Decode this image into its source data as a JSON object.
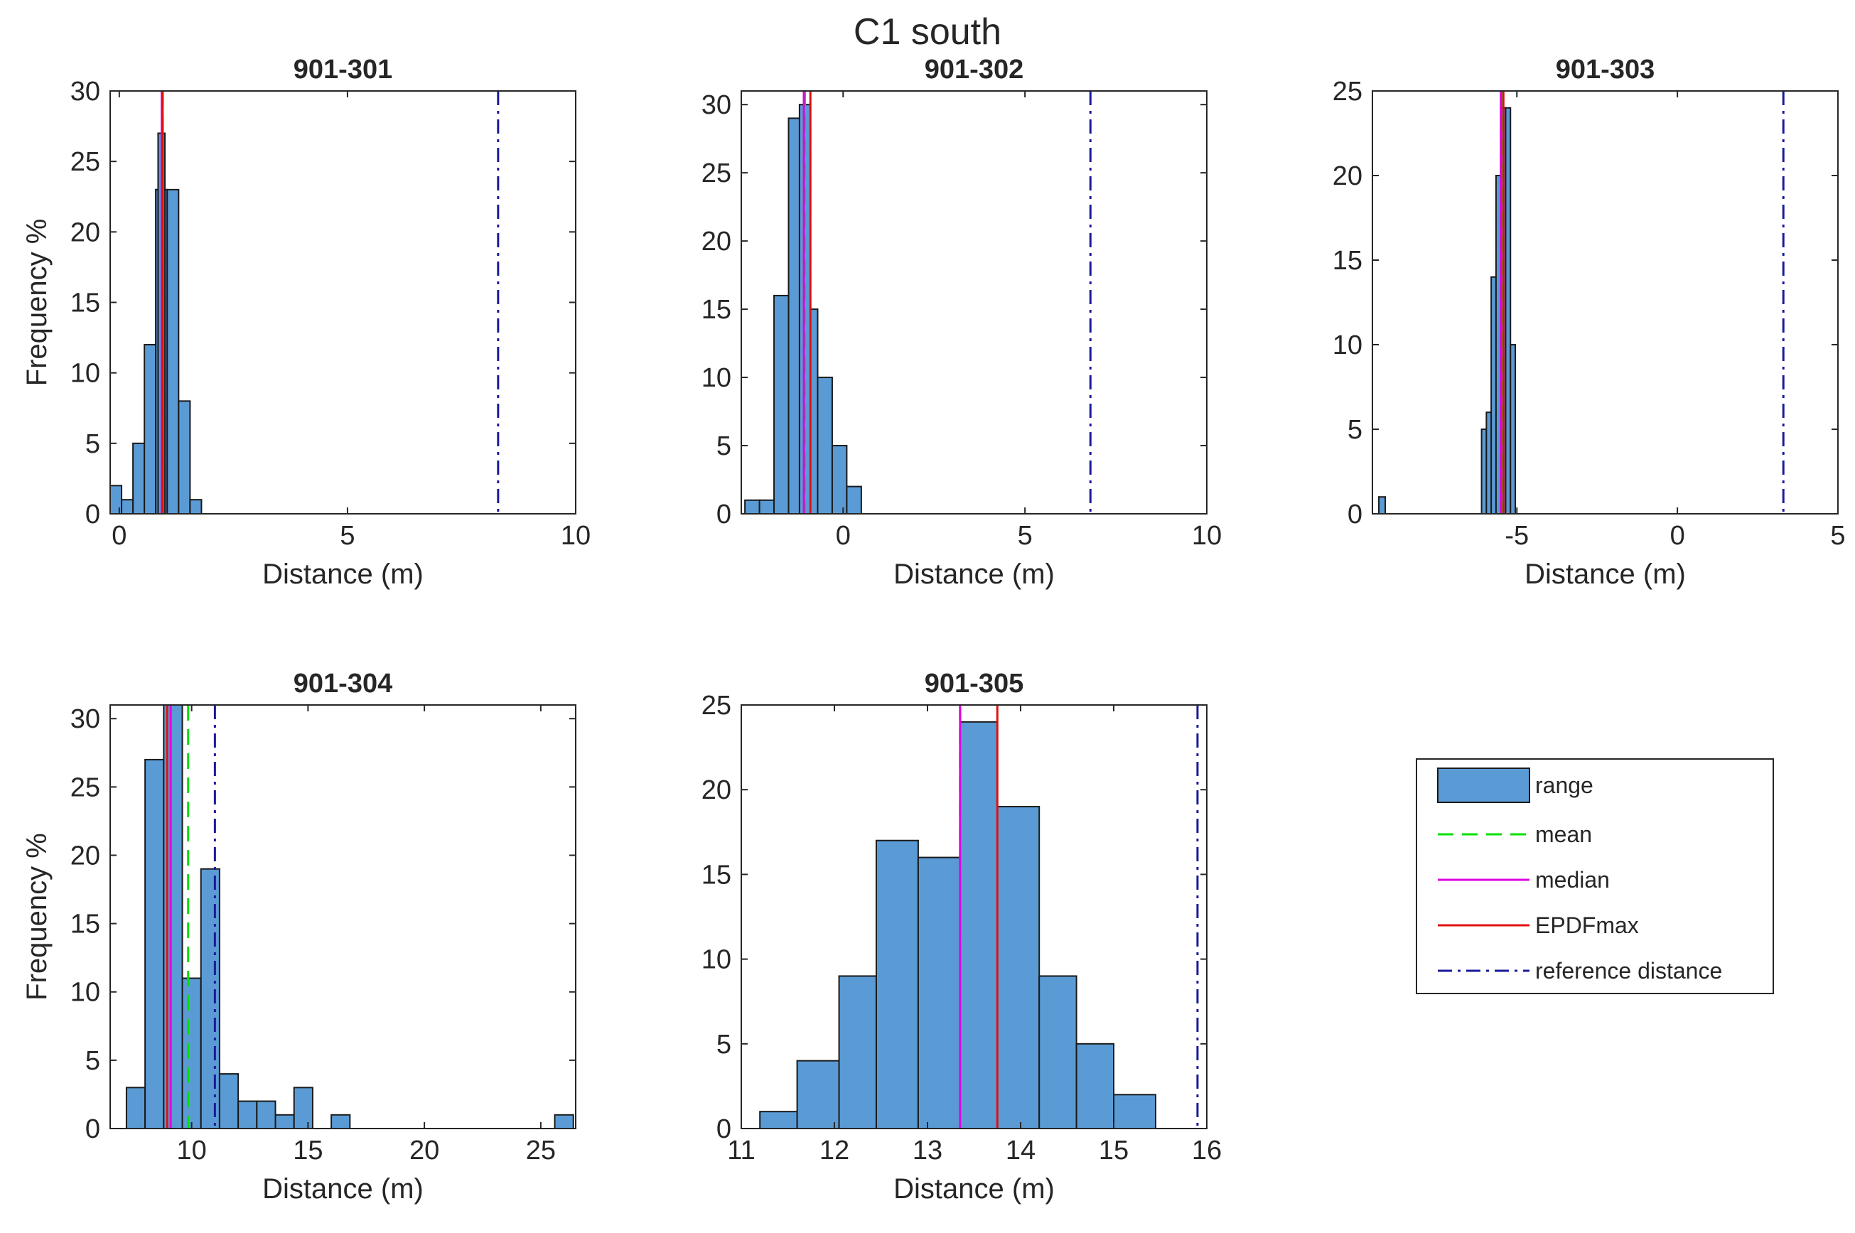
{
  "figure_title": "C1 south",
  "legend": {
    "items": [
      {
        "label": "range",
        "kind": "patch",
        "color": "#5b9bd5"
      },
      {
        "label": "mean",
        "kind": "line",
        "color": "#00e000",
        "dash": "dashed"
      },
      {
        "label": "median",
        "kind": "line",
        "color": "#e000e0",
        "dash": "solid"
      },
      {
        "label": "EPDFmax",
        "kind": "line",
        "color": "#e01010",
        "dash": "solid"
      },
      {
        "label": "reference distance",
        "kind": "line",
        "color": "#1a1a9a",
        "dash": "dashdot"
      }
    ]
  },
  "colors": {
    "bar_fill": "#5b9bd5",
    "bar_edge": "#1a1a1a",
    "axis": "#262626"
  },
  "chart_data": [
    {
      "type": "bar",
      "id": "901-301",
      "title": "901-301",
      "xlabel": "Distance (m)",
      "ylabel": "Frequency %",
      "xlim": [
        -0.2,
        10
      ],
      "ylim": [
        0,
        30
      ],
      "xticks": [
        0,
        5,
        10
      ],
      "yticks": [
        0,
        5,
        10,
        15,
        20,
        25,
        30
      ],
      "bins": [
        [
          -0.2,
          0.05,
          2
        ],
        [
          0.05,
          0.3,
          1
        ],
        [
          0.3,
          0.55,
          5
        ],
        [
          0.55,
          0.8,
          12
        ],
        [
          0.8,
          1.05,
          23
        ],
        [
          1.05,
          1.3,
          23
        ],
        [
          1.3,
          1.55,
          8
        ],
        [
          1.55,
          1.8,
          1
        ]
      ],
      "bin_overlay": [
        [
          0.8,
          1.0,
          23
        ],
        [
          0.85,
          1.0,
          27
        ]
      ],
      "mean": 0.95,
      "median": 0.93,
      "epdfmax": 0.95,
      "reference": 8.3
    },
    {
      "type": "bar",
      "id": "901-302",
      "title": "901-302",
      "xlabel": "Distance (m)",
      "ylabel": "",
      "xlim": [
        -2.8,
        10
      ],
      "ylim": [
        0,
        31
      ],
      "xticks": [
        0,
        5,
        10
      ],
      "yticks": [
        0,
        5,
        10,
        15,
        20,
        25,
        30
      ],
      "bins": [
        [
          -2.7,
          -2.3,
          1
        ],
        [
          -2.3,
          -1.9,
          1
        ],
        [
          -1.9,
          -1.5,
          16
        ],
        [
          -1.5,
          -1.1,
          29
        ],
        [
          -1.1,
          -0.7,
          15
        ],
        [
          -0.7,
          -0.3,
          10
        ],
        [
          -0.3,
          0.1,
          5
        ],
        [
          0.1,
          0.5,
          2
        ]
      ],
      "bin_overlay": [
        [
          -1.2,
          -0.9,
          30
        ]
      ],
      "mean": -1.05,
      "median": -1.08,
      "epdfmax": -0.9,
      "reference": 6.8
    },
    {
      "type": "bar",
      "id": "901-303",
      "title": "901-303",
      "xlabel": "Distance (m)",
      "ylabel": "",
      "xlim": [
        -9.5,
        5
      ],
      "ylim": [
        0,
        25
      ],
      "xticks": [
        -5,
        0,
        5
      ],
      "yticks": [
        0,
        5,
        10,
        15,
        20,
        25
      ],
      "bins": [
        [
          -9.3,
          -9.1,
          1
        ],
        [
          -6.1,
          -5.95,
          5
        ],
        [
          -5.95,
          -5.8,
          6
        ],
        [
          -5.8,
          -5.65,
          14
        ],
        [
          -5.65,
          -5.5,
          20
        ],
        [
          -5.5,
          -5.35,
          24
        ],
        [
          -5.35,
          -5.2,
          24
        ],
        [
          -5.2,
          -5.05,
          10
        ]
      ],
      "bin_overlay": [],
      "mean": -5.45,
      "median": -5.5,
      "epdfmax": -5.42,
      "reference": 3.3
    },
    {
      "type": "bar",
      "id": "901-304",
      "title": "901-304",
      "xlabel": "Distance (m)",
      "ylabel": "Frequency %",
      "xlim": [
        6.5,
        26.5
      ],
      "ylim": [
        0,
        31
      ],
      "xticks": [
        10,
        15,
        20,
        25
      ],
      "yticks": [
        0,
        5,
        10,
        15,
        20,
        25,
        30
      ],
      "bins": [
        [
          7.2,
          8.0,
          3
        ],
        [
          8.0,
          8.8,
          27
        ],
        [
          8.8,
          9.6,
          31
        ],
        [
          9.6,
          10.4,
          11
        ],
        [
          10.4,
          11.2,
          19
        ],
        [
          11.2,
          12.0,
          4
        ],
        [
          12.0,
          12.8,
          2
        ],
        [
          12.8,
          13.6,
          2
        ],
        [
          13.6,
          14.4,
          1
        ],
        [
          14.4,
          15.2,
          3
        ],
        [
          15.2,
          16.0,
          0
        ],
        [
          16.0,
          16.8,
          1
        ],
        [
          25.6,
          26.4,
          1
        ]
      ],
      "bin_overlay": [],
      "mean": 9.85,
      "median": 9.1,
      "epdfmax": 8.95,
      "reference": 11.0
    },
    {
      "type": "bar",
      "id": "901-305",
      "title": "901-305",
      "xlabel": "Distance (m)",
      "ylabel": "",
      "xlim": [
        11,
        16
      ],
      "ylim": [
        0,
        25
      ],
      "xticks": [
        11,
        12,
        13,
        14,
        15,
        16
      ],
      "yticks": [
        0,
        5,
        10,
        15,
        20,
        25
      ],
      "bins": [
        [
          11.2,
          11.6,
          1
        ],
        [
          11.6,
          12.05,
          4
        ],
        [
          12.05,
          12.45,
          9
        ],
        [
          12.45,
          12.9,
          17
        ],
        [
          12.9,
          13.35,
          16
        ],
        [
          13.35,
          13.75,
          24
        ],
        [
          13.75,
          14.2,
          19
        ],
        [
          14.2,
          14.6,
          9
        ],
        [
          14.6,
          15.0,
          5
        ],
        [
          15.0,
          15.45,
          2
        ]
      ],
      "bin_overlay": [],
      "mean": 13.35,
      "median": 13.35,
      "epdfmax": 13.75,
      "reference": 15.9
    }
  ]
}
